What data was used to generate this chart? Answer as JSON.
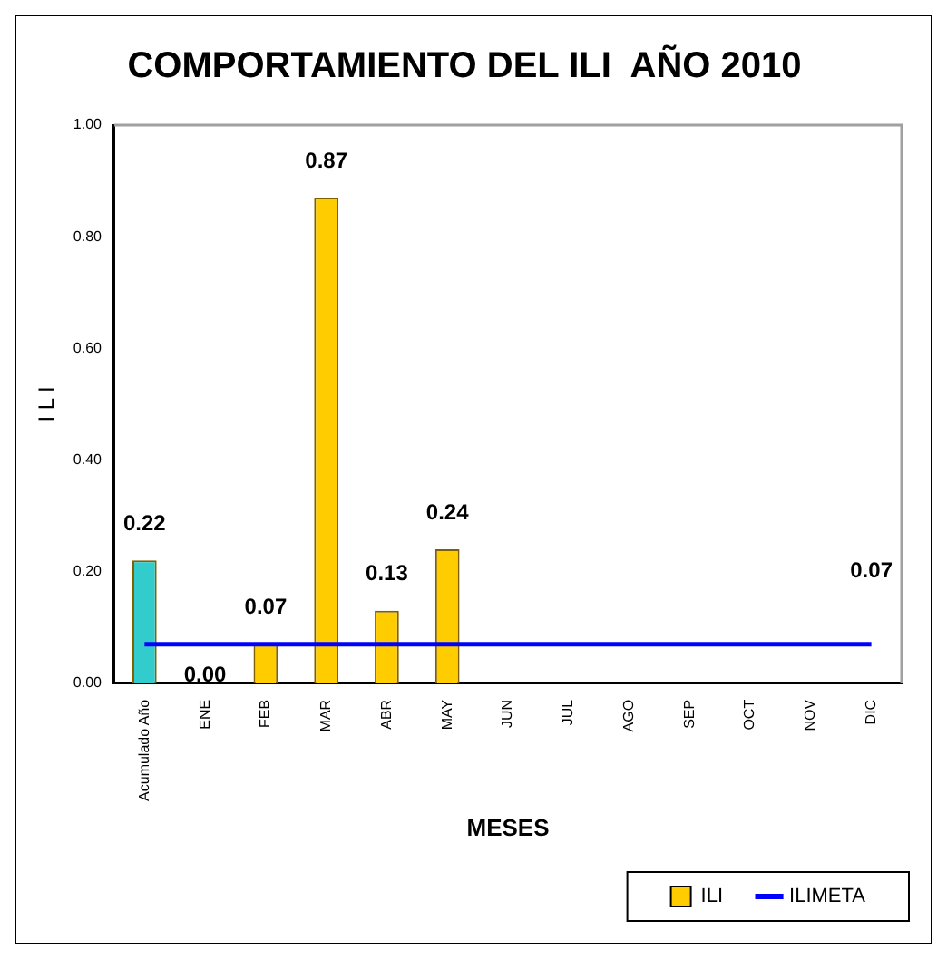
{
  "chart_data": {
    "type": "bar",
    "title": "COMPORTAMIENTO DEL ILI  AÑO 2010",
    "xlabel": "MESES",
    "ylabel": "I L I",
    "categories": [
      "Acumulado Año",
      "ENE",
      "FEB",
      "MAR",
      "ABR",
      "MAY",
      "JUN",
      "JUL",
      "AGO",
      "SEP",
      "OCT",
      "NOV",
      "DIC"
    ],
    "series": [
      {
        "name": "ILI",
        "color": "#ffcc00",
        "colors": [
          "#33cccc",
          "#ffcc00",
          "#ffcc00",
          "#ffcc00",
          "#ffcc00",
          "#ffcc00",
          "#ffcc00",
          "#ffcc00",
          "#ffcc00",
          "#ffcc00",
          "#ffcc00",
          "#ffcc00",
          "#ffcc00"
        ],
        "values": [
          0.22,
          0.0,
          0.07,
          0.87,
          0.13,
          0.24,
          null,
          null,
          null,
          null,
          null,
          null,
          null
        ],
        "value_labels": [
          "0.22",
          "0.00",
          "0.07",
          "0.87",
          "0.13",
          "0.24",
          null,
          null,
          null,
          null,
          null,
          null,
          null
        ]
      },
      {
        "name": "ILIMETA",
        "type": "line",
        "color": "#0000ff",
        "marker": "none",
        "values": [
          0.07,
          0.07,
          0.07,
          0.07,
          0.07,
          0.07,
          0.07,
          0.07,
          0.07,
          0.07,
          0.07,
          0.07,
          0.07
        ],
        "value_labels": [
          null,
          null,
          null,
          null,
          null,
          null,
          null,
          null,
          null,
          null,
          null,
          null,
          "0.07"
        ]
      }
    ],
    "ylim": [
      0,
      1
    ],
    "yticks": [
      {
        "value": 0,
        "label": "0.00"
      },
      {
        "value": 0.2,
        "label": "0.20"
      },
      {
        "value": 0.4,
        "label": "0.40"
      },
      {
        "value": 0.6,
        "label": "0.60"
      },
      {
        "value": 0.8,
        "label": "0.80"
      },
      {
        "value": 1,
        "label": "1.00"
      }
    ],
    "grid": false,
    "legend": "bottom right"
  }
}
